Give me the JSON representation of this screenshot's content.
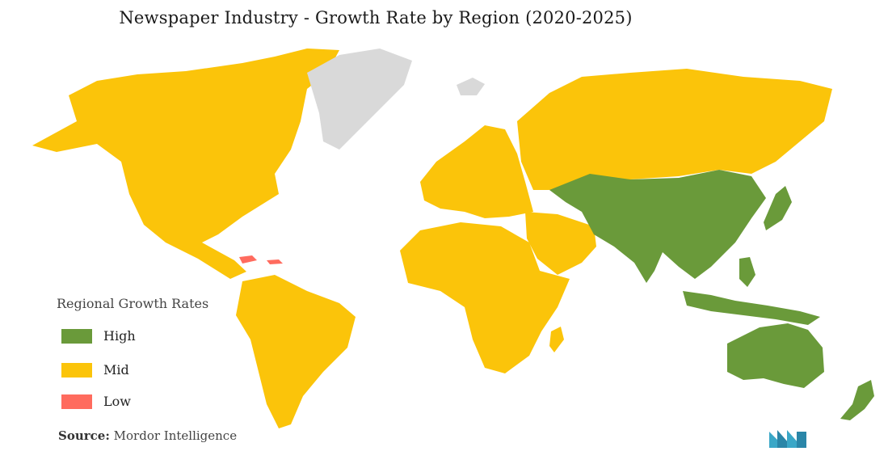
{
  "title": "Newspaper Industry  - Growth Rate by Region (2020-2025)",
  "legend": {
    "title": "Regional Growth Rates",
    "items": [
      {
        "label": "High",
        "color": "#6a9a3a"
      },
      {
        "label": "Mid",
        "color": "#fbc40a"
      },
      {
        "label": "Low",
        "color": "#ff6b5e"
      }
    ]
  },
  "no_data_color": "#d9d9d9",
  "source": {
    "prefix": "Source:",
    "text": "Mordor Intelligence"
  },
  "regions": {
    "high": [
      "China",
      "India",
      "Southeast Asia",
      "Japan",
      "Korea",
      "Australia",
      "New Zealand"
    ],
    "mid": [
      "North America",
      "South America",
      "Europe",
      "Russia",
      "Africa",
      "Middle East"
    ],
    "low": [
      "Caribbean"
    ],
    "no_data": [
      "Greenland",
      "Iceland"
    ]
  }
}
